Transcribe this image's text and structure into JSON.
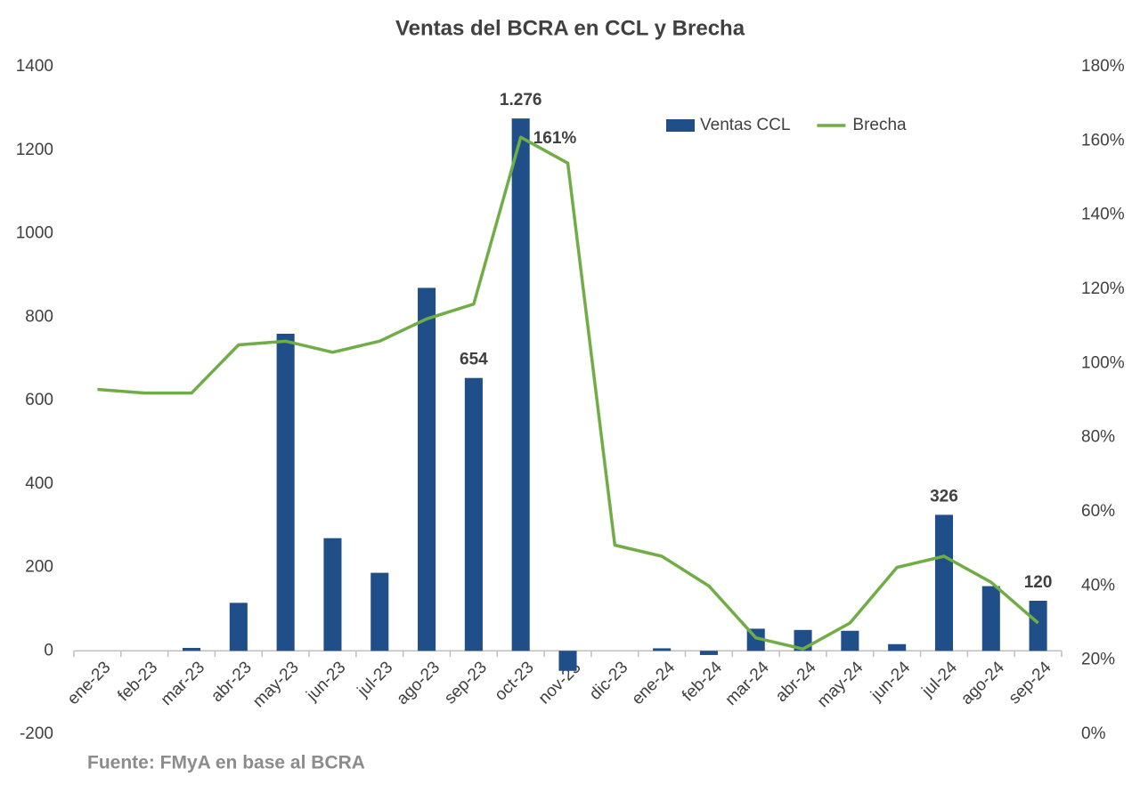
{
  "chart_data": {
    "type": "bar-line",
    "title": "Ventas del BCRA en CCL y Brecha",
    "source": "Fuente: FMyA en base al BCRA",
    "categories": [
      "ene-23",
      "feb-23",
      "mar-23",
      "abr-23",
      "may-23",
      "jun-23",
      "jul-23",
      "ago-23",
      "sep-23",
      "oct-23",
      "nov-23",
      "dic-23",
      "ene-24",
      "feb-24",
      "mar-24",
      "abr-24",
      "may-24",
      "jun-24",
      "jul-24",
      "ago-24",
      "sep-24"
    ],
    "series": [
      {
        "name": "Ventas CCL",
        "type": "bar",
        "color": "#1f4e89",
        "values": [
          0,
          0,
          7,
          115,
          760,
          270,
          187,
          870,
          654,
          1276,
          -48,
          0,
          6,
          -10,
          53,
          50,
          48,
          16,
          326,
          155,
          120
        ],
        "value_labels": [
          null,
          null,
          null,
          null,
          null,
          null,
          null,
          null,
          "654",
          "1.276",
          null,
          null,
          null,
          null,
          null,
          null,
          null,
          null,
          "326",
          null,
          "120"
        ]
      },
      {
        "name": "Brecha",
        "type": "line",
        "axis": "y2",
        "color": "#70ad47",
        "values": [
          93,
          92,
          92,
          105,
          106,
          103,
          106,
          112,
          116,
          161,
          154,
          51,
          48,
          40,
          26,
          23,
          30,
          45,
          48,
          41,
          30
        ],
        "value_labels": [
          null,
          null,
          null,
          null,
          null,
          null,
          null,
          null,
          null,
          "161%",
          null,
          null,
          null,
          null,
          null,
          null,
          null,
          null,
          null,
          null,
          null
        ]
      }
    ],
    "ylim": [
      -200,
      1400
    ],
    "yticks": [
      -200,
      0,
      200,
      400,
      600,
      800,
      1000,
      1200,
      1400
    ],
    "y2lim": [
      0,
      180
    ],
    "y2ticks": [
      {
        "value": 0,
        "label": "0%"
      },
      {
        "value": 20,
        "label": "20%"
      },
      {
        "value": 40,
        "label": "40%"
      },
      {
        "value": 60,
        "label": "60%"
      },
      {
        "value": 80,
        "label": "80%"
      },
      {
        "value": 100,
        "label": "100%"
      },
      {
        "value": 120,
        "label": "120%"
      },
      {
        "value": 140,
        "label": "140%"
      },
      {
        "value": 160,
        "label": "160%"
      },
      {
        "value": 180,
        "label": "180%"
      }
    ],
    "legend": "top",
    "grid": false
  }
}
